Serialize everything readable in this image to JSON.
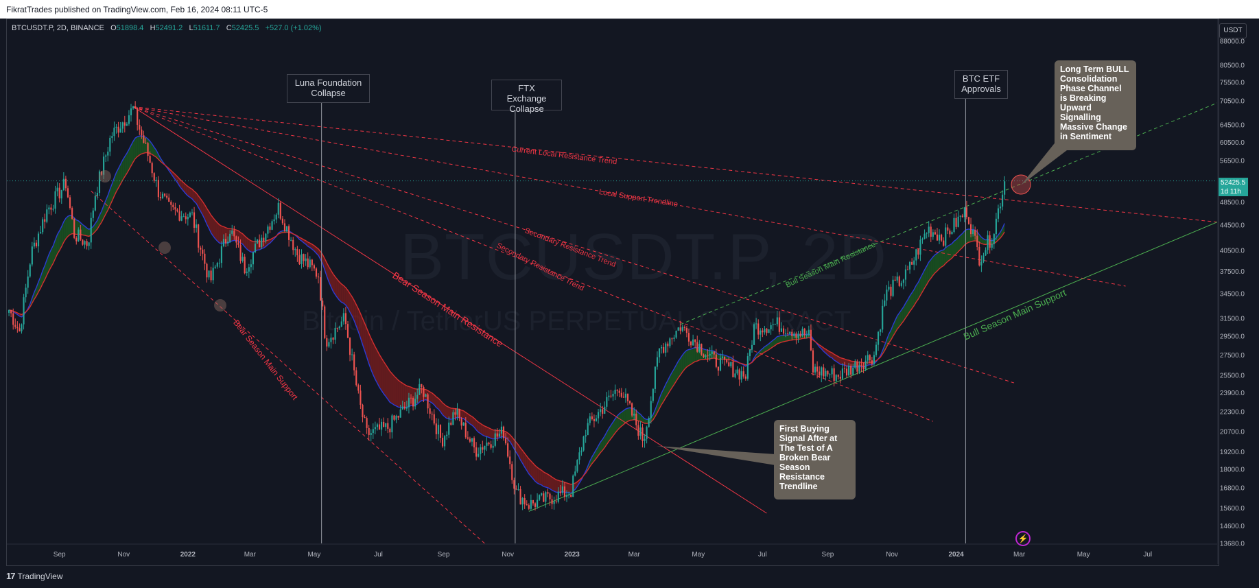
{
  "header": {
    "published": "FikratTrades published on TradingView.com, Feb 16, 2024 08:11 UTC-5"
  },
  "symbol_bar": {
    "symbol": "BTCUSDT.P, 2D, BINANCE",
    "o_label": "O",
    "o": "51898.4",
    "h_label": "H",
    "h": "52491.2",
    "l_label": "L",
    "l": "51611.7",
    "c_label": "C",
    "c": "52425.5",
    "change": "+527.0 (+1.02%)"
  },
  "watermark": {
    "line1": "BTCUSDT.P, 2D",
    "line2": "Bitcoin / TetherUS PERPETUAL CONTRACT"
  },
  "currency": "USDT",
  "last_price": {
    "price": "52425.5",
    "countdown": "1d 11h"
  },
  "footer": {
    "brand": "TradingView"
  },
  "colors": {
    "background": "#131722",
    "bull": "#26a69a",
    "bear": "#ef5350",
    "support_green": "#4caf50",
    "resistance_red": "#f23645",
    "callout_fill": "#676159"
  },
  "annotations": {
    "luna": "Luna Foundation\nCollapse",
    "ftx": "FTX Exchange\nCollapse",
    "etf": "BTC ETF\nApprovals",
    "bull_note": "Long Term BULL\nConsolidation\nPhase Channel\nis Breaking\nUpward\nSignalling\nMassive Change\nin Sentiment",
    "buy_note": "First Buying\nSignal After at\nThe Test of A\nBroken Bear\nSeason\nResistance\nTrendline"
  },
  "trendline_labels": {
    "current_local_resistance": "Current Local Resistance Trend",
    "local_support": "Local Support Trendline",
    "secondary_resistance_1": "Secondary Resistance Trend",
    "secondary_resistance_2": "Secondary Resistance Trend",
    "bear_main_resistance": "Bear Season Main Resistance",
    "bear_main_support": "Bear Season Main Support",
    "bull_main_resistance": "Bull Season Main Resistance",
    "bull_main_support": "Bull Season Main Support"
  },
  "chart_data": {
    "type": "candlestick",
    "symbol": "BTCUSDT.P",
    "interval": "2D",
    "y_scale": "log",
    "ylim": [
      13680,
      88000
    ],
    "y_ticks": [
      "88000.0",
      "80500.0",
      "75500.0",
      "70500.0",
      "64500.0",
      "60500.0",
      "56500.0",
      "52425.5",
      "48500.0",
      "44500.0",
      "40500.0",
      "37500.0",
      "34500.0",
      "31500.0",
      "29500.0",
      "27500.0",
      "25500.0",
      "23900.0",
      "22300.0",
      "20700.0",
      "19200.0",
      "18000.0",
      "16800.0",
      "15600.0",
      "14600.0",
      "13680.0"
    ],
    "x_ticks": [
      "Sep",
      "Nov",
      "2022",
      "Mar",
      "May",
      "Jul",
      "Sep",
      "Nov",
      "2023",
      "Mar",
      "May",
      "Jul",
      "Sep",
      "Nov",
      "2024",
      "Mar",
      "May",
      "Jul"
    ],
    "x_range": [
      "2021-07-13",
      "2024-09-05"
    ],
    "price_path": [
      [
        "2021-07-15",
        32500
      ],
      [
        "2021-07-25",
        30000
      ],
      [
        "2021-08-05",
        40000
      ],
      [
        "2021-08-20",
        47000
      ],
      [
        "2021-09-07",
        52000
      ],
      [
        "2021-09-15",
        43000
      ],
      [
        "2021-09-28",
        41500
      ],
      [
        "2021-10-05",
        50000
      ],
      [
        "2021-10-20",
        62000
      ],
      [
        "2021-11-10",
        68500
      ],
      [
        "2021-11-25",
        57000
      ],
      [
        "2021-12-04",
        50500
      ],
      [
        "2021-12-15",
        47000
      ],
      [
        "2022-01-05",
        46000
      ],
      [
        "2022-01-22",
        36000
      ],
      [
        "2022-02-10",
        44000
      ],
      [
        "2022-02-24",
        38000
      ],
      [
        "2022-03-28",
        47500
      ],
      [
        "2022-04-15",
        40000
      ],
      [
        "2022-05-05",
        37000
      ],
      [
        "2022-05-12",
        29000
      ],
      [
        "2022-05-30",
        31500
      ],
      [
        "2022-06-13",
        23000
      ],
      [
        "2022-06-20",
        20500
      ],
      [
        "2022-07-10",
        21000
      ],
      [
        "2022-08-12",
        24300
      ],
      [
        "2022-08-30",
        20000
      ],
      [
        "2022-09-12",
        22300
      ],
      [
        "2022-10-01",
        19300
      ],
      [
        "2022-10-28",
        20700
      ],
      [
        "2022-11-09",
        16500
      ],
      [
        "2022-11-21",
        15800
      ],
      [
        "2022-12-31",
        16600
      ],
      [
        "2023-01-14",
        20900
      ],
      [
        "2023-02-15",
        24500
      ],
      [
        "2023-03-10",
        20000
      ],
      [
        "2023-03-25",
        28000
      ],
      [
        "2023-04-14",
        30600
      ],
      [
        "2023-05-15",
        27000
      ],
      [
        "2023-06-15",
        25500
      ],
      [
        "2023-06-23",
        30500
      ],
      [
        "2023-07-15",
        30800
      ],
      [
        "2023-08-14",
        29500
      ],
      [
        "2023-08-18",
        26000
      ],
      [
        "2023-09-11",
        25500
      ],
      [
        "2023-10-15",
        27500
      ],
      [
        "2023-10-26",
        34500
      ],
      [
        "2023-11-15",
        37000
      ],
      [
        "2023-12-05",
        44000
      ],
      [
        "2023-12-20",
        42500
      ],
      [
        "2024-01-11",
        47000
      ],
      [
        "2024-01-23",
        39500
      ],
      [
        "2024-02-05",
        43000
      ],
      [
        "2024-02-16",
        52425.5
      ]
    ],
    "trendlines": [
      {
        "name": "Bear Season Main Resistance",
        "color": "#f23645",
        "style": "solid",
        "from": [
          "2021-11-10",
          69000
        ],
        "to": [
          "2023-07-05",
          15300
        ]
      },
      {
        "name": "Bear Season Main Support",
        "color": "#f23645",
        "style": "dashed",
        "from": [
          "2021-10-01",
          50500
        ],
        "to": [
          "2022-10-10",
          13680
        ]
      },
      {
        "name": "Current Local Resistance Trend",
        "color": "#f23645",
        "style": "dashed",
        "from": [
          "2021-11-10",
          69000
        ],
        "to": [
          "2024-09-05",
          45000
        ]
      },
      {
        "name": "Local Support Trendline",
        "color": "#f23645",
        "style": "dashed",
        "from": [
          "2021-11-10",
          69000
        ],
        "to": [
          "2024-06-10",
          35500
        ]
      },
      {
        "name": "Secondary Resistance Trend",
        "color": "#f23645",
        "style": "dashed",
        "from": [
          "2021-11-10",
          69000
        ],
        "to": [
          "2024-02-25",
          24800
        ]
      },
      {
        "name": "Secondary Resistance Trend",
        "color": "#f23645",
        "style": "dashed",
        "from": [
          "2021-11-10",
          69000
        ],
        "to": [
          "2023-12-10",
          21500
        ]
      },
      {
        "name": "Bull Season Main Support",
        "color": "#4caf50",
        "style": "solid",
        "from": [
          "2022-11-21",
          15400
        ],
        "to": [
          "2024-09-05",
          45000
        ]
      },
      {
        "name": "Bull Season Main Resistance",
        "color": "#4caf50",
        "style": "dashed",
        "from": [
          "2023-04-14",
          30800
        ],
        "to": [
          "2024-09-05",
          70000
        ]
      }
    ],
    "events": [
      {
        "label": "Luna Foundation Collapse",
        "date": "2022-05-08"
      },
      {
        "label": "FTX Exchange Collapse",
        "date": "2022-11-08"
      },
      {
        "label": "BTC ETF Approvals",
        "date": "2024-01-10"
      }
    ],
    "last_close": 52425.5
  }
}
